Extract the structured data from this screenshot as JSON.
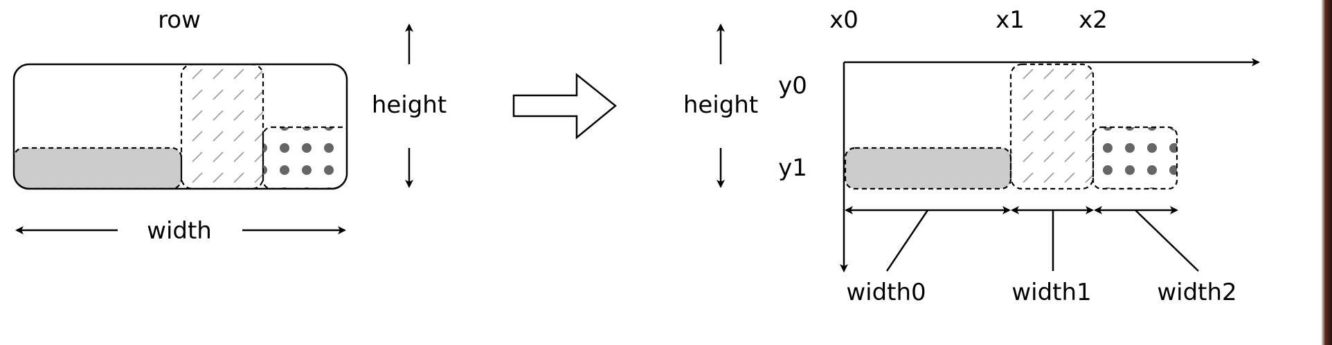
{
  "left": {
    "row_label": "row",
    "height_label": "height",
    "width_label": "width"
  },
  "right": {
    "height_label": "height",
    "x_labels": [
      "x0",
      "x1",
      "x2"
    ],
    "y_labels": [
      "y0",
      "y1"
    ],
    "width_labels": [
      "width0",
      "width1",
      "width2"
    ]
  },
  "colors": {
    "line": "#000000",
    "gray_fill": "#cccccc",
    "hatch": "#999999",
    "dots": "#666666",
    "edge_bar": "#5a2a1e"
  }
}
